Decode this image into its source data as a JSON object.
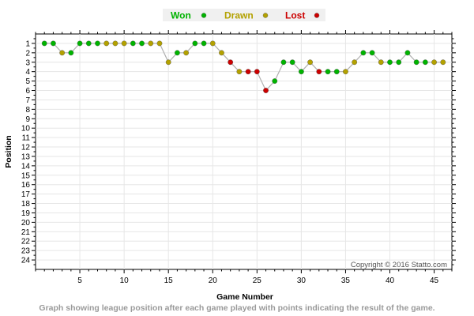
{
  "chart_data": {
    "type": "line",
    "xlabel": "Game Number",
    "ylabel": "Position",
    "xlim": [
      0,
      47
    ],
    "ylim": [
      25,
      0
    ],
    "x_ticks": [
      5,
      10,
      15,
      20,
      25,
      30,
      35,
      40,
      45
    ],
    "y_ticks": [
      1,
      2,
      3,
      4,
      5,
      6,
      7,
      8,
      9,
      10,
      11,
      12,
      13,
      14,
      15,
      16,
      17,
      18,
      19,
      20,
      21,
      22,
      23,
      24
    ],
    "y_inverted": true,
    "grid": true,
    "legend_position": "top-center",
    "legend": [
      {
        "key": "W",
        "label": "Won",
        "color": "#00b300"
      },
      {
        "key": "D",
        "label": "Drawn",
        "color": "#b3a100"
      },
      {
        "key": "L",
        "label": "Lost",
        "color": "#cc0000"
      }
    ],
    "line_color": "#b0b0b0",
    "points": [
      {
        "x": 1,
        "y": 1,
        "r": "W"
      },
      {
        "x": 2,
        "y": 1,
        "r": "W"
      },
      {
        "x": 3,
        "y": 2,
        "r": "D"
      },
      {
        "x": 4,
        "y": 2,
        "r": "W"
      },
      {
        "x": 5,
        "y": 1,
        "r": "W"
      },
      {
        "x": 6,
        "y": 1,
        "r": "W"
      },
      {
        "x": 7,
        "y": 1,
        "r": "W"
      },
      {
        "x": 8,
        "y": 1,
        "r": "D"
      },
      {
        "x": 9,
        "y": 1,
        "r": "D"
      },
      {
        "x": 10,
        "y": 1,
        "r": "D"
      },
      {
        "x": 11,
        "y": 1,
        "r": "W"
      },
      {
        "x": 12,
        "y": 1,
        "r": "W"
      },
      {
        "x": 13,
        "y": 1,
        "r": "D"
      },
      {
        "x": 14,
        "y": 1,
        "r": "D"
      },
      {
        "x": 15,
        "y": 3,
        "r": "D"
      },
      {
        "x": 16,
        "y": 2,
        "r": "W"
      },
      {
        "x": 17,
        "y": 2,
        "r": "D"
      },
      {
        "x": 18,
        "y": 1,
        "r": "W"
      },
      {
        "x": 19,
        "y": 1,
        "r": "W"
      },
      {
        "x": 20,
        "y": 1,
        "r": "D"
      },
      {
        "x": 21,
        "y": 2,
        "r": "D"
      },
      {
        "x": 22,
        "y": 3,
        "r": "L"
      },
      {
        "x": 23,
        "y": 4,
        "r": "D"
      },
      {
        "x": 24,
        "y": 4,
        "r": "L"
      },
      {
        "x": 25,
        "y": 4,
        "r": "L"
      },
      {
        "x": 26,
        "y": 6,
        "r": "L"
      },
      {
        "x": 27,
        "y": 5,
        "r": "W"
      },
      {
        "x": 28,
        "y": 3,
        "r": "W"
      },
      {
        "x": 29,
        "y": 3,
        "r": "W"
      },
      {
        "x": 30,
        "y": 4,
        "r": "W"
      },
      {
        "x": 31,
        "y": 3,
        "r": "D"
      },
      {
        "x": 32,
        "y": 4,
        "r": "L"
      },
      {
        "x": 33,
        "y": 4,
        "r": "W"
      },
      {
        "x": 34,
        "y": 4,
        "r": "W"
      },
      {
        "x": 35,
        "y": 4,
        "r": "D"
      },
      {
        "x": 36,
        "y": 3,
        "r": "D"
      },
      {
        "x": 37,
        "y": 2,
        "r": "W"
      },
      {
        "x": 38,
        "y": 2,
        "r": "W"
      },
      {
        "x": 39,
        "y": 3,
        "r": "D"
      },
      {
        "x": 40,
        "y": 3,
        "r": "W"
      },
      {
        "x": 41,
        "y": 3,
        "r": "W"
      },
      {
        "x": 42,
        "y": 2,
        "r": "W"
      },
      {
        "x": 43,
        "y": 3,
        "r": "W"
      },
      {
        "x": 44,
        "y": 3,
        "r": "W"
      },
      {
        "x": 45,
        "y": 3,
        "r": "D"
      },
      {
        "x": 46,
        "y": 3,
        "r": "D"
      }
    ]
  },
  "copyright": "Copyright © 2016 Statto.com",
  "caption": "Graph showing league position after each game played with points indicating the result of the game."
}
